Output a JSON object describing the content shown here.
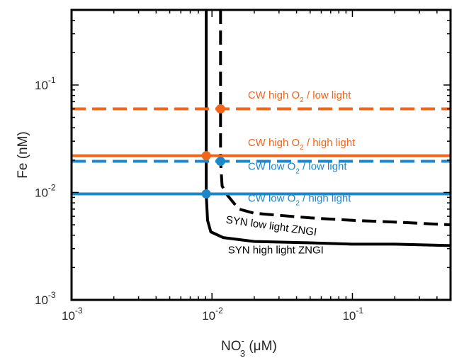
{
  "chart_data": {
    "type": "line",
    "xscale": "log",
    "yscale": "log",
    "xlim": [
      0.001,
      0.5
    ],
    "ylim": [
      0.001,
      0.5
    ],
    "xlabel": {
      "main": "NO",
      "sub": "3",
      "sup": "-",
      "unit": " (μM)"
    },
    "ylabel": "Fe (nM)",
    "grid": false,
    "x_ticks": [
      {
        "value": 0.001,
        "base": "10",
        "exp": "-3"
      },
      {
        "value": 0.01,
        "base": "10",
        "exp": "-2"
      },
      {
        "value": 0.1,
        "base": "10",
        "exp": "-1"
      }
    ],
    "y_ticks": [
      {
        "value": 0.001,
        "base": "10",
        "exp": "-3"
      },
      {
        "value": 0.01,
        "base": "10",
        "exp": "-2"
      },
      {
        "value": 0.1,
        "base": "10",
        "exp": "-1"
      }
    ],
    "series": [
      {
        "name": "SYN high light ZNGI",
        "color": "#000000",
        "dash": "solid",
        "x": [
          0.0091,
          0.0091,
          0.0093,
          0.0098,
          0.012,
          0.02,
          0.05,
          0.1,
          0.2,
          0.5
        ],
        "y": [
          0.5,
          0.0095,
          0.0055,
          0.0043,
          0.0038,
          0.0035,
          0.0034,
          0.0033,
          0.0033,
          0.0032
        ]
      },
      {
        "name": "SYN low light ZNGI",
        "color": "#000000",
        "dash": "dashed",
        "x": [
          0.0115,
          0.0115,
          0.0118,
          0.0128,
          0.0155,
          0.02,
          0.05,
          0.1,
          0.2,
          0.5
        ],
        "y": [
          0.5,
          0.0195,
          0.0115,
          0.0095,
          0.007,
          0.0064,
          0.0058,
          0.0055,
          0.0053,
          0.005
        ]
      },
      {
        "name": "CW high O / low light",
        "color": "#f26419",
        "dash": "dashed",
        "x": [
          0.001,
          0.5
        ],
        "y": [
          0.06,
          0.06
        ]
      },
      {
        "name": "CW high O / high light",
        "color": "#f26419",
        "dash": "solid",
        "x": [
          0.001,
          0.5
        ],
        "y": [
          0.022,
          0.022
        ]
      },
      {
        "name": "CW low O / low light",
        "color": "#1b86c8",
        "dash": "dashed",
        "x": [
          0.001,
          0.5
        ],
        "y": [
          0.0195,
          0.0195
        ]
      },
      {
        "name": "CW low O / high light",
        "color": "#1b86c8",
        "dash": "solid",
        "x": [
          0.001,
          0.5
        ],
        "y": [
          0.0097,
          0.0097
        ]
      }
    ],
    "markers": [
      {
        "x": 0.0115,
        "y": 0.06,
        "color": "#f26419"
      },
      {
        "x": 0.0091,
        "y": 0.022,
        "color": "#f26419"
      },
      {
        "x": 0.0115,
        "y": 0.0195,
        "color": "#1b86c8"
      },
      {
        "x": 0.0091,
        "y": 0.0097,
        "color": "#1b86c8"
      }
    ],
    "annotations": [
      {
        "pre": "CW high O",
        "sub": "2",
        "post": " / low light",
        "color": "#f26419",
        "x": 0.018,
        "y": 0.075,
        "rotate": 0
      },
      {
        "pre": "CW high O",
        "sub": "2",
        "post": " / high light",
        "color": "#f26419",
        "x": 0.018,
        "y": 0.027,
        "rotate": 0
      },
      {
        "pre": "CW low O",
        "sub": "2",
        "post": " / low light",
        "color": "#1b86c8",
        "x": 0.018,
        "y": 0.0163,
        "rotate": 0
      },
      {
        "pre": "CW low O",
        "sub": "2",
        "post": " / high light",
        "color": "#1b86c8",
        "x": 0.018,
        "y": 0.0082,
        "rotate": 0
      },
      {
        "pre": "SYN low light ZNGI",
        "sub": "",
        "post": "",
        "color": "#000000",
        "x": 0.0125,
        "y": 0.0052,
        "rotate": 8
      },
      {
        "pre": "SYN high light ZNGI",
        "sub": "",
        "post": "",
        "color": "#000000",
        "x": 0.013,
        "y": 0.0027,
        "rotate": 0
      }
    ]
  }
}
